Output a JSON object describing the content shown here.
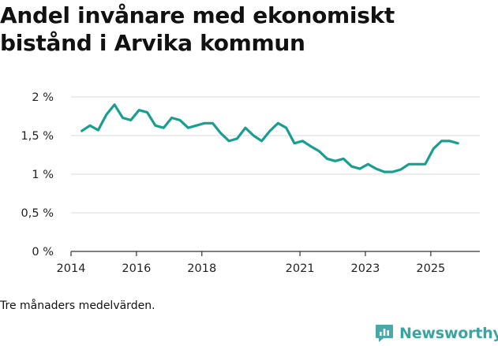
{
  "title": "Andel invånare med ekonomiskt bistånd i Arvika kommun",
  "footnote": "Tre månaders medelvärden.",
  "brand": {
    "name": "Newsworthy",
    "icon": "newsworthy-logo-icon"
  },
  "colors": {
    "line": "#1a9e8f",
    "grid": "#d9d9d9",
    "brand": "#3aa5a0"
  },
  "chart_data": {
    "type": "line",
    "title": "Andel invånare med ekonomiskt bistånd i Arvika kommun",
    "xlabel": "",
    "ylabel": "",
    "ylim": [
      0,
      2
    ],
    "xlim": [
      2014,
      2026.5
    ],
    "grid": true,
    "yticks": [
      {
        "value": 0,
        "label": "0 %"
      },
      {
        "value": 0.5,
        "label": "0,5 %"
      },
      {
        "value": 1,
        "label": "1 %"
      },
      {
        "value": 1.5,
        "label": "1,5 %"
      },
      {
        "value": 2,
        "label": "2 %"
      }
    ],
    "xticks": [
      {
        "value": 2014,
        "label": "2014"
      },
      {
        "value": 2016,
        "label": "2016"
      },
      {
        "value": 2018,
        "label": "2018"
      },
      {
        "value": 2021,
        "label": "2021"
      },
      {
        "value": 2023,
        "label": "2023"
      },
      {
        "value": 2025,
        "label": "2025"
      }
    ],
    "series": [
      {
        "x": [
          2014.33,
          2014.58,
          2014.83,
          2015.08,
          2015.33,
          2015.58,
          2015.83,
          2016.08,
          2016.33,
          2016.58,
          2016.83,
          2017.08,
          2017.33,
          2017.58,
          2017.83,
          2018.08,
          2018.33,
          2018.58,
          2018.83,
          2019.08,
          2019.33,
          2019.58,
          2019.83,
          2020.08,
          2020.33,
          2020.58,
          2020.83,
          2021.08,
          2021.33,
          2021.58,
          2021.83,
          2022.08,
          2022.33,
          2022.58,
          2022.83,
          2023.08,
          2023.33,
          2023.58,
          2023.83,
          2024.08,
          2024.33,
          2024.58,
          2024.83,
          2025.08,
          2025.33,
          2025.58,
          2025.83
        ],
        "values": [
          1.56,
          1.63,
          1.57,
          1.77,
          1.9,
          1.73,
          1.7,
          1.83,
          1.8,
          1.63,
          1.6,
          1.73,
          1.7,
          1.6,
          1.63,
          1.66,
          1.66,
          1.53,
          1.43,
          1.46,
          1.6,
          1.5,
          1.43,
          1.56,
          1.66,
          1.6,
          1.4,
          1.43,
          1.36,
          1.3,
          1.2,
          1.17,
          1.2,
          1.1,
          1.07,
          1.13,
          1.07,
          1.03,
          1.03,
          1.06,
          1.13,
          1.13,
          1.13,
          1.33,
          1.43,
          1.43,
          1.4
        ]
      }
    ]
  }
}
